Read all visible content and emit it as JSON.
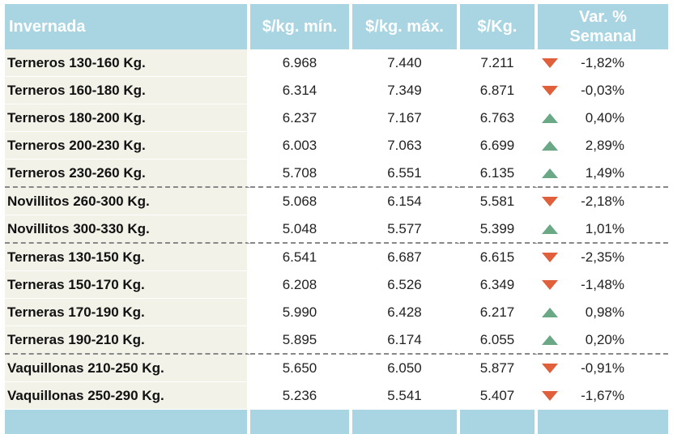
{
  "header": {
    "col_name": "Invernada",
    "col_min": "$/kg. mín.",
    "col_max": "$/kg. máx.",
    "col_avg": "$/Kg.",
    "col_var_line1": "Var. %",
    "col_var_line2": "Semanal"
  },
  "colors": {
    "up": "#6aa886",
    "down": "#e0603c",
    "header_bg": "#a9d5e2",
    "name_bg": "#f3f2e9"
  },
  "rows": [
    {
      "name": "Terneros 130-160 Kg.",
      "min": "6.968",
      "max": "7.440",
      "avg": "7.211",
      "trend": "down",
      "var": "-1,82%"
    },
    {
      "name": "Terneros 160-180 Kg.",
      "min": "6.314",
      "max": "7.349",
      "avg": "6.871",
      "trend": "down",
      "var": "-0,03%"
    },
    {
      "name": "Terneros 180-200 Kg.",
      "min": "6.237",
      "max": "7.167",
      "avg": "6.763",
      "trend": "up",
      "var": "0,40%"
    },
    {
      "name": "Terneros 200-230 Kg.",
      "min": "6.003",
      "max": "7.063",
      "avg": "6.699",
      "trend": "up",
      "var": "2,89%"
    },
    {
      "name": "Terneros 230-260 Kg.",
      "min": "5.708",
      "max": "6.551",
      "avg": "6.135",
      "trend": "up",
      "var": "1,49%"
    },
    {
      "name": "Novillitos 260-300 Kg.",
      "min": "5.068",
      "max": "6.154",
      "avg": "5.581",
      "trend": "down",
      "var": "-2,18%"
    },
    {
      "name": "Novillitos 300-330 Kg.",
      "min": "5.048",
      "max": "5.577",
      "avg": "5.399",
      "trend": "up",
      "var": "1,01%"
    },
    {
      "name": "Terneras 130-150 Kg.",
      "min": "6.541",
      "max": "6.687",
      "avg": "6.615",
      "trend": "down",
      "var": "-2,35%"
    },
    {
      "name": "Terneras 150-170 Kg.",
      "min": "6.208",
      "max": "6.526",
      "avg": "6.349",
      "trend": "down",
      "var": "-1,48%"
    },
    {
      "name": "Terneras 170-190 Kg.",
      "min": "5.990",
      "max": "6.428",
      "avg": "6.217",
      "trend": "up",
      "var": "0,98%"
    },
    {
      "name": "Terneras 190-210 Kg.",
      "min": "5.895",
      "max": "6.174",
      "avg": "6.055",
      "trend": "up",
      "var": "0,20%"
    },
    {
      "name": "Vaquillonas 210-250 Kg.",
      "min": "5.650",
      "max": "6.050",
      "avg": "5.877",
      "trend": "down",
      "var": "-0,91%"
    },
    {
      "name": "Vaquillonas 250-290 Kg.",
      "min": "5.236",
      "max": "5.541",
      "avg": "5.407",
      "trend": "down",
      "var": "-1,67%"
    }
  ]
}
